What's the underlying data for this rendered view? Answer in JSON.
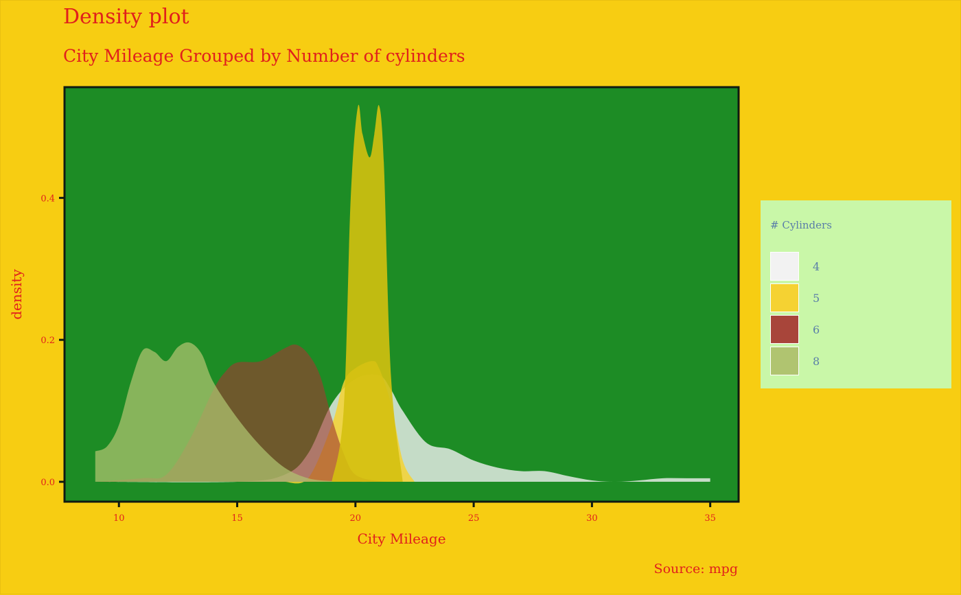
{
  "chart_data": {
    "type": "area",
    "title": "Density plot",
    "subtitle": "City Mileage Grouped by Number of cylinders",
    "caption": "Source: mpg",
    "xlabel": "City Mileage",
    "ylabel": "density",
    "xlim": [
      7.7,
      36.2
    ],
    "ylim": [
      -0.028,
      0.556
    ],
    "xticks": [
      10,
      15,
      20,
      25,
      30,
      35
    ],
    "yticks": [
      0.0,
      0.2,
      0.4
    ],
    "ytick_labels": [
      "0.0",
      "0.2",
      "0.4"
    ],
    "grid": false,
    "legend": {
      "title": "# Cylinders",
      "position": "right"
    },
    "series": [
      {
        "name": "4",
        "color": "#f0f0f0",
        "x": [
          9,
          15,
          17,
          18,
          19,
          20,
          21,
          21.5,
          22,
          23,
          24,
          25,
          26,
          27,
          28,
          29,
          30,
          31,
          32,
          33,
          34,
          35
        ],
        "y": [
          0,
          0,
          0.01,
          0.04,
          0.11,
          0.145,
          0.15,
          0.13,
          0.1,
          0.055,
          0.046,
          0.03,
          0.02,
          0.015,
          0.015,
          0.008,
          0.002,
          0,
          0.002,
          0.005,
          0.005,
          0.005
        ]
      },
      {
        "name": "5",
        "color": "#f5d232",
        "x": [
          17,
          18,
          19,
          19.5,
          20,
          20.7,
          21,
          21.5,
          22,
          22.5
        ],
        "y": [
          0,
          0.005,
          0.08,
          0.14,
          0.16,
          0.17,
          0.16,
          0.11,
          0.03,
          0
        ]
      },
      {
        "name": "6",
        "color": "#a03a30",
        "x": [
          9,
          11,
          12,
          13,
          14,
          14.5,
          15,
          16,
          17,
          17.5,
          18,
          18.5,
          19,
          19.5,
          20,
          21,
          22
        ],
        "y": [
          0,
          0.005,
          0.01,
          0.06,
          0.13,
          0.155,
          0.168,
          0.17,
          0.188,
          0.193,
          0.18,
          0.15,
          0.09,
          0.04,
          0.01,
          0.001,
          0
        ]
      },
      {
        "name": "8",
        "color": "#b0c470",
        "x": [
          9,
          9.5,
          10,
          10.5,
          11,
          11.5,
          12,
          12.5,
          13,
          13.5,
          14,
          15,
          16,
          17,
          18,
          19,
          20,
          21,
          22
        ],
        "y": [
          0.043,
          0.05,
          0.08,
          0.14,
          0.185,
          0.183,
          0.17,
          0.19,
          0.196,
          0.18,
          0.14,
          0.09,
          0.05,
          0.02,
          0.005,
          0.001,
          0,
          0,
          0
        ]
      },
      {
        "name": "",
        "color": "#d4c010",
        "x": [
          19,
          19.5,
          19.8,
          20.1,
          20.3,
          20.6,
          20.8,
          21,
          21.2,
          21.5,
          22
        ],
        "y": [
          0,
          0.1,
          0.4,
          0.528,
          0.49,
          0.457,
          0.49,
          0.53,
          0.45,
          0.15,
          0
        ]
      }
    ]
  }
}
